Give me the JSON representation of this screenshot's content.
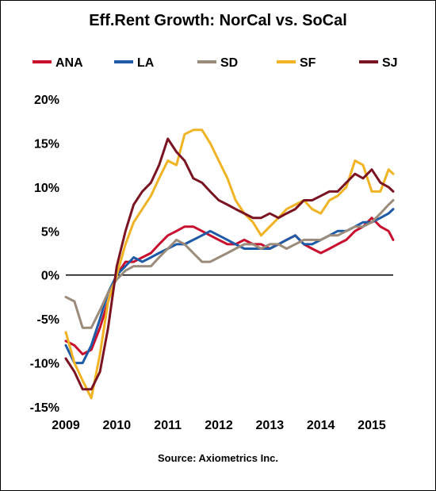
{
  "chart_data": {
    "type": "line",
    "title": "Eff.Rent Growth: NorCal vs. SoCal",
    "source": "Source: Axiometrics Inc.",
    "xlabel": "",
    "ylabel": "",
    "legend_position": "top",
    "x_ticks": [
      "2009",
      "2010",
      "2011",
      "2012",
      "2013",
      "2014",
      "2015"
    ],
    "xlim": [
      2009.0,
      2015.42
    ],
    "y_ticks": [
      "20%",
      "15%",
      "10%",
      "5%",
      "0%",
      "-5%",
      "-10%",
      "-15%"
    ],
    "y_tick_values": [
      20,
      15,
      10,
      5,
      0,
      -5,
      -10,
      -15
    ],
    "ylim": [
      -15,
      20
    ],
    "zero_line": true,
    "grid": false,
    "series": [
      {
        "name": "ANA",
        "color": "#C8102E",
        "x": [
          2009.0,
          2009.17,
          2009.33,
          2009.5,
          2009.67,
          2009.83,
          2010.0,
          2010.17,
          2010.33,
          2010.5,
          2010.67,
          2010.83,
          2011.0,
          2011.17,
          2011.33,
          2011.5,
          2011.67,
          2011.83,
          2012.0,
          2012.17,
          2012.33,
          2012.5,
          2012.67,
          2012.83,
          2013.0,
          2013.17,
          2013.33,
          2013.5,
          2013.67,
          2013.83,
          2014.0,
          2014.17,
          2014.33,
          2014.5,
          2014.67,
          2014.83,
          2015.0,
          2015.17,
          2015.33,
          2015.42
        ],
        "values": [
          -7.5,
          -8,
          -9,
          -8.5,
          -6,
          -3,
          0,
          1.5,
          1.5,
          2,
          2.5,
          3.5,
          4.5,
          5,
          5.5,
          5.5,
          5,
          4.5,
          4,
          3.5,
          3.5,
          4,
          3.5,
          3.5,
          3,
          3.5,
          4,
          4.5,
          3.5,
          3,
          2.5,
          3,
          3.5,
          4,
          5,
          5.5,
          6.5,
          5.5,
          5,
          4
        ]
      },
      {
        "name": "LA",
        "color": "#1F5AA6",
        "x": [
          2009.0,
          2009.17,
          2009.33,
          2009.5,
          2009.67,
          2009.83,
          2010.0,
          2010.17,
          2010.33,
          2010.5,
          2010.67,
          2010.83,
          2011.0,
          2011.17,
          2011.33,
          2011.5,
          2011.67,
          2011.83,
          2012.0,
          2012.17,
          2012.33,
          2012.5,
          2012.67,
          2012.83,
          2013.0,
          2013.17,
          2013.33,
          2013.5,
          2013.67,
          2013.83,
          2014.0,
          2014.17,
          2014.33,
          2014.5,
          2014.67,
          2014.83,
          2015.0,
          2015.17,
          2015.33,
          2015.42
        ],
        "values": [
          -8,
          -10,
          -10,
          -8,
          -5,
          -2,
          0,
          1,
          2,
          1.5,
          2,
          2.5,
          3,
          3.5,
          3.5,
          4,
          4.5,
          5,
          4.5,
          4,
          3.5,
          3,
          3,
          3,
          3,
          3.5,
          4,
          4.5,
          3.5,
          3.5,
          4,
          4.5,
          5,
          5,
          5.5,
          6,
          6,
          6.5,
          7,
          7.5
        ]
      },
      {
        "name": "SD",
        "color": "#9A8B7A",
        "x": [
          2009.0,
          2009.17,
          2009.33,
          2009.5,
          2009.67,
          2009.83,
          2010.0,
          2010.17,
          2010.33,
          2010.5,
          2010.67,
          2010.83,
          2011.0,
          2011.17,
          2011.33,
          2011.5,
          2011.67,
          2011.83,
          2012.0,
          2012.17,
          2012.33,
          2012.5,
          2012.67,
          2012.83,
          2013.0,
          2013.17,
          2013.33,
          2013.5,
          2013.67,
          2013.83,
          2014.0,
          2014.17,
          2014.33,
          2014.5,
          2014.67,
          2014.83,
          2015.0,
          2015.17,
          2015.33,
          2015.42
        ],
        "values": [
          -2.5,
          -3,
          -6,
          -6,
          -4,
          -2,
          -0.5,
          0.5,
          1,
          1,
          1,
          2,
          3,
          4,
          3.5,
          2.5,
          1.5,
          1.5,
          2,
          2.5,
          3,
          3.5,
          3.5,
          3,
          3.5,
          3.5,
          3,
          3.5,
          4,
          4,
          4,
          4.5,
          4.5,
          5,
          5.5,
          5.5,
          6,
          7,
          8,
          8.5
        ]
      },
      {
        "name": "SF",
        "color": "#F0B323",
        "x": [
          2009.0,
          2009.17,
          2009.33,
          2009.5,
          2009.67,
          2009.83,
          2010.0,
          2010.17,
          2010.33,
          2010.5,
          2010.67,
          2010.83,
          2011.0,
          2011.17,
          2011.33,
          2011.5,
          2011.67,
          2011.83,
          2012.0,
          2012.17,
          2012.33,
          2012.5,
          2012.67,
          2012.83,
          2013.0,
          2013.17,
          2013.33,
          2013.5,
          2013.67,
          2013.83,
          2014.0,
          2014.17,
          2014.33,
          2014.5,
          2014.67,
          2014.83,
          2015.0,
          2015.17,
          2015.33,
          2015.42
        ],
        "values": [
          -6.5,
          -10,
          -12,
          -14,
          -9,
          -3,
          0,
          3.5,
          6,
          7.5,
          9,
          11,
          13,
          12.5,
          16,
          16.5,
          16.5,
          15,
          13,
          11,
          8.5,
          7,
          6,
          4.5,
          5.5,
          6.5,
          7.5,
          8,
          8.5,
          7.5,
          7,
          8.5,
          9,
          10,
          13,
          12.5,
          9.5,
          9.5,
          12,
          11.5
        ]
      },
      {
        "name": "SJ",
        "color": "#7A1422",
        "x": [
          2009.0,
          2009.17,
          2009.33,
          2009.5,
          2009.67,
          2009.83,
          2010.0,
          2010.17,
          2010.33,
          2010.5,
          2010.67,
          2010.83,
          2011.0,
          2011.17,
          2011.33,
          2011.5,
          2011.67,
          2011.83,
          2012.0,
          2012.17,
          2012.33,
          2012.5,
          2012.67,
          2012.83,
          2013.0,
          2013.17,
          2013.33,
          2013.5,
          2013.67,
          2013.83,
          2014.0,
          2014.17,
          2014.33,
          2014.5,
          2014.67,
          2014.83,
          2015.0,
          2015.17,
          2015.33,
          2015.42
        ],
        "values": [
          -9.5,
          -11,
          -13,
          -13,
          -11,
          -6,
          1,
          5,
          8,
          9.5,
          10.5,
          12.5,
          15.5,
          14,
          13,
          11,
          10.5,
          9.5,
          8.5,
          8,
          7.5,
          7,
          6.5,
          6.5,
          7,
          6.5,
          7,
          7.5,
          8.5,
          8.5,
          9,
          9.5,
          9.5,
          10.5,
          11.5,
          11,
          12,
          10.5,
          10,
          9.5
        ]
      }
    ]
  }
}
